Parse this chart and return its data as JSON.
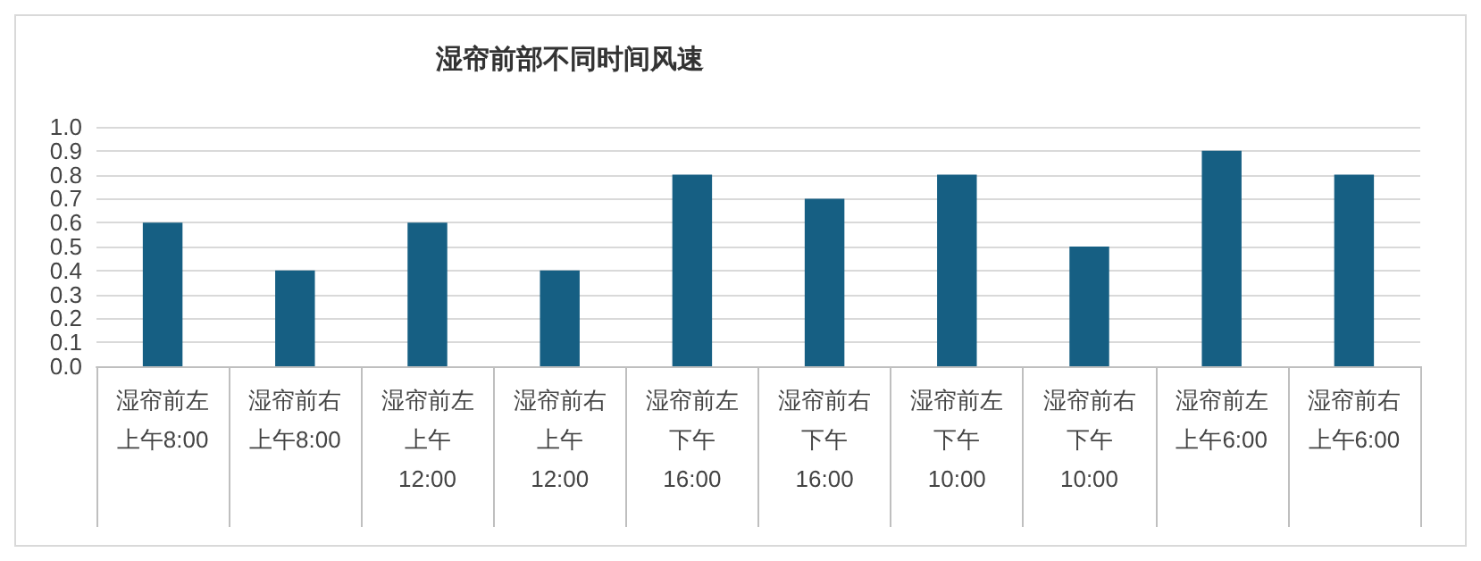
{
  "chart_data": {
    "type": "bar",
    "title": "湿帘前部不同时间风速",
    "categories": [
      "湿帘前左上午8:00",
      "湿帘前右上午8:00",
      "湿帘前左上午12:00",
      "湿帘前右上午12:00",
      "湿帘前左下午16:00",
      "湿帘前右下午16:00",
      "湿帘前左下午10:00",
      "湿帘前右下午10:00",
      "湿帘前左上午6:00",
      "湿帘前右上午6:00"
    ],
    "values": [
      0.6,
      0.4,
      0.6,
      0.4,
      0.8,
      0.7,
      0.8,
      0.5,
      0.9,
      0.8
    ],
    "color": "#165f83",
    "ylim": [
      0,
      1
    ],
    "yticks": [
      {
        "value": 0,
        "label": "0.0"
      },
      {
        "value": 0.1,
        "label": "0.1"
      },
      {
        "value": 0.2,
        "label": "0.2"
      },
      {
        "value": 0.3,
        "label": "0.3"
      },
      {
        "value": 0.4,
        "label": "0.4"
      },
      {
        "value": 0.5,
        "label": "0.5"
      },
      {
        "value": 0.6,
        "label": "0.6"
      },
      {
        "value": 0.7,
        "label": "0.7"
      },
      {
        "value": 0.8,
        "label": "0.8"
      },
      {
        "value": 0.9,
        "label": "0.9"
      },
      {
        "value": 1,
        "label": "1.0"
      }
    ],
    "grid": "y"
  }
}
